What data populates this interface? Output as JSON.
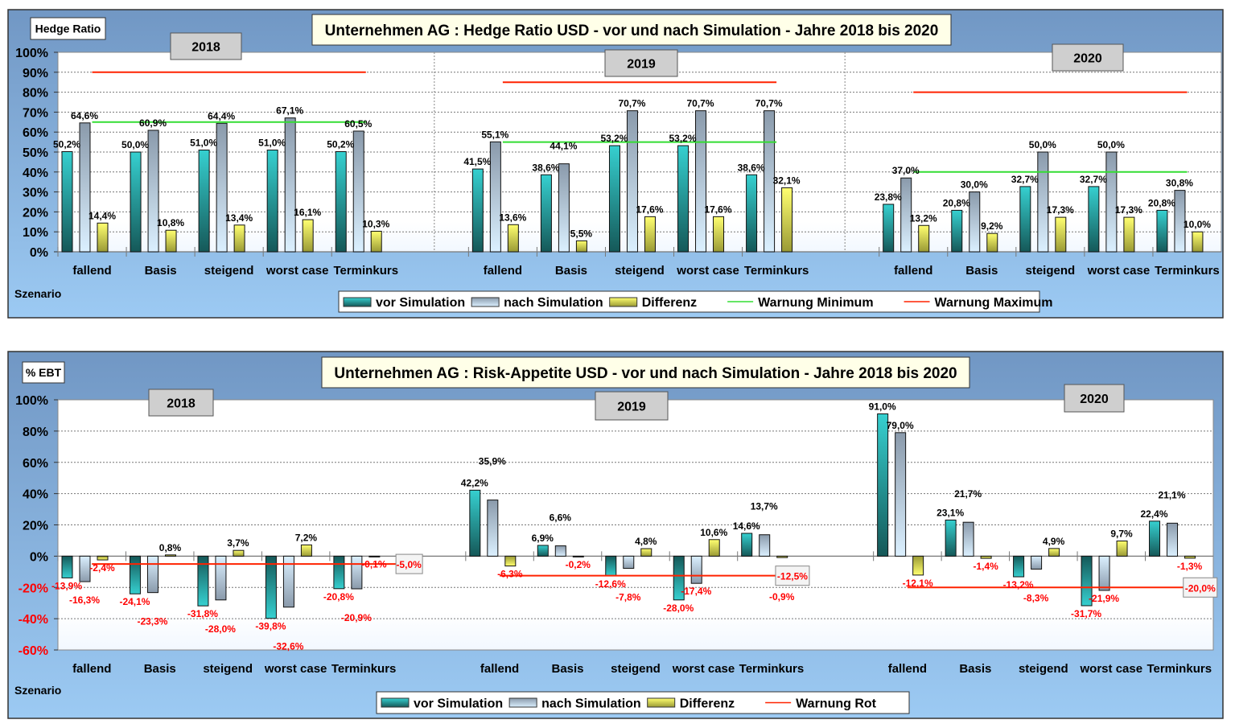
{
  "colors": {
    "vor": "#2ec4c4",
    "nach": "#9fb4c8",
    "diff": "#e8e84a",
    "min": "#33dd33",
    "max": "#ff2200"
  },
  "chart_data": [
    {
      "type": "bar",
      "title": "Unternehmen AG : Hedge Ratio USD  -  vor und nach Simulation  -  Jahre 2018 bis 2020",
      "ylabel": "Hedge Ratio",
      "xlabel": "Szenario",
      "ylim": [
        0,
        100
      ],
      "yticks": [
        "0%",
        "10%",
        "20%",
        "30%",
        "40%",
        "50%",
        "60%",
        "70%",
        "80%",
        "90%",
        "100%"
      ],
      "grid": true,
      "legend_position": "bottom",
      "legend": [
        "vor Simulation",
        "nach Simulation",
        "Differenz",
        "Warnung Minimum",
        "Warnung Maximum"
      ],
      "categories": [
        "fallend",
        "Basis",
        "steigend",
        "worst case",
        "Terminkurs"
      ],
      "years": [
        {
          "year": "2018",
          "vor": [
            50.2,
            50.0,
            51.0,
            51.0,
            50.2
          ],
          "nach": [
            64.6,
            60.9,
            64.4,
            67.1,
            60.5
          ],
          "diff": [
            14.4,
            10.8,
            13.4,
            16.1,
            10.3
          ],
          "warn_min": 65,
          "warn_max": 90
        },
        {
          "year": "2019",
          "vor": [
            41.5,
            38.6,
            53.2,
            53.2,
            38.6
          ],
          "nach": [
            55.1,
            44.1,
            70.7,
            70.7,
            70.7
          ],
          "diff": [
            13.6,
            5.5,
            17.6,
            17.6,
            32.1
          ],
          "warn_min": 55,
          "warn_max": 85
        },
        {
          "year": "2020",
          "vor": [
            23.8,
            20.8,
            32.7,
            32.7,
            20.8
          ],
          "nach": [
            37.0,
            30.0,
            50.0,
            50.0,
            30.8
          ],
          "diff": [
            13.2,
            9.2,
            17.3,
            17.3,
            10.0
          ],
          "warn_min": 40,
          "warn_max": 80
        }
      ]
    },
    {
      "type": "bar",
      "title": "Unternehmen AG : Risk-Appetite USD  -  vor und nach Simulation  -  Jahre 2018 bis 2020",
      "ylabel": "% EBT",
      "xlabel": "Szenario",
      "ylim": [
        -60,
        100
      ],
      "yticks": [
        "-60%",
        "-40%",
        "-20%",
        "0%",
        "20%",
        "40%",
        "60%",
        "80%",
        "100%"
      ],
      "grid": true,
      "legend_position": "bottom",
      "legend": [
        "vor Simulation",
        "nach Simulation",
        "Differenz",
        "Warnung Rot"
      ],
      "categories": [
        "fallend",
        "Basis",
        "steigend",
        "worst case",
        "Terminkurs"
      ],
      "years": [
        {
          "year": "2018",
          "vor": [
            -13.9,
            -24.1,
            -31.8,
            -39.8,
            -20.8
          ],
          "nach": [
            -16.3,
            -23.3,
            -28.0,
            -32.6,
            -20.9
          ],
          "diff": [
            -2.4,
            0.8,
            3.7,
            7.2,
            -0.1
          ],
          "warn_rot": -5.0,
          "warn_label": "-5,0%"
        },
        {
          "year": "2019",
          "vor": [
            42.2,
            6.9,
            -12.6,
            -28.0,
            14.6
          ],
          "nach": [
            35.9,
            6.6,
            -7.8,
            -17.4,
            13.7
          ],
          "diff": [
            -6.3,
            -0.2,
            4.8,
            10.6,
            -0.9
          ],
          "warn_rot": -12.5,
          "warn_label": "-12,5%"
        },
        {
          "year": "2020",
          "vor": [
            91.0,
            23.1,
            -13.2,
            -31.7,
            22.4
          ],
          "nach": [
            79.0,
            21.7,
            -8.3,
            -21.9,
            21.1
          ],
          "diff": [
            -12.1,
            -1.4,
            4.9,
            9.7,
            -1.3
          ],
          "warn_rot": -20.0,
          "warn_label": "-20,0%"
        }
      ]
    }
  ]
}
